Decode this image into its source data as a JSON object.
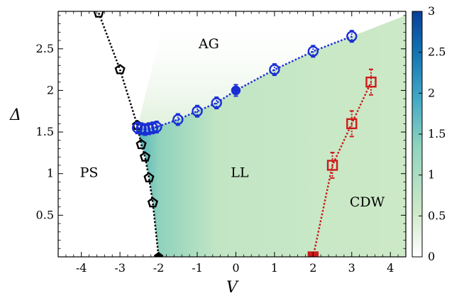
{
  "chart_data": {
    "type": "scatter",
    "title": "",
    "xlabel": "V",
    "ylabel": "Δ",
    "xlim": [
      -4.6,
      4.4
    ],
    "ylim": [
      0,
      2.95
    ],
    "xticks": [
      -4,
      -3,
      -2,
      -1,
      0,
      1,
      2,
      3,
      4
    ],
    "xtick_labels": [
      "-4",
      "-3",
      "-2",
      "-1",
      "0",
      "1",
      "2",
      "3",
      "4"
    ],
    "yticks": [
      0.5,
      1,
      1.5,
      2,
      2.5
    ],
    "ytick_labels": [
      "0.5",
      "1",
      "1.5",
      "2",
      "2.5"
    ],
    "grid": false,
    "colorbar": {
      "range": [
        0,
        3
      ],
      "ticks": [
        0,
        0.5,
        1,
        1.5,
        2,
        2.5,
        3
      ],
      "tick_labels": [
        "0",
        "0.5",
        "1",
        "1.5",
        "2",
        "2.5",
        "3"
      ],
      "colors": [
        "#ffffff",
        "#cfe9c8",
        "#8fd4bf",
        "#3fa8c6",
        "#0f6fb2",
        "#083f9a"
      ]
    },
    "region_labels": [
      {
        "text": "AG",
        "x": -0.7,
        "y": 2.55
      },
      {
        "text": "PS",
        "x": -3.8,
        "y": 1.0
      },
      {
        "text": "LL",
        "x": 0.1,
        "y": 1.0
      },
      {
        "text": "CDW",
        "x": 3.4,
        "y": 0.65
      }
    ],
    "series": [
      {
        "color": "#000000",
        "marker": "pentagon",
        "x": [
          -3.55,
          -3.0,
          -2.55,
          -2.45,
          -2.35,
          -2.25,
          -2.15,
          -2.0
        ],
        "y": [
          2.93,
          2.25,
          1.58,
          1.35,
          1.2,
          0.95,
          0.65,
          0.0
        ]
      },
      {
        "color": "#1a2ed6",
        "marker": "circle",
        "x": [
          -2.55,
          -2.45,
          -2.35,
          -2.25,
          -2.15,
          -2.05,
          -1.5,
          -1.0,
          -0.5,
          0.0,
          1.0,
          2.0,
          3.0
        ],
        "y": [
          1.55,
          1.54,
          1.53,
          1.54,
          1.55,
          1.56,
          1.65,
          1.75,
          1.85,
          2.0,
          2.25,
          2.47,
          2.65
        ]
      },
      {
        "color": "#cc1a1a",
        "marker": "square",
        "x": [
          2.0,
          2.5,
          3.0,
          3.5
        ],
        "y": [
          0.0,
          1.1,
          1.6,
          2.1
        ]
      }
    ]
  }
}
